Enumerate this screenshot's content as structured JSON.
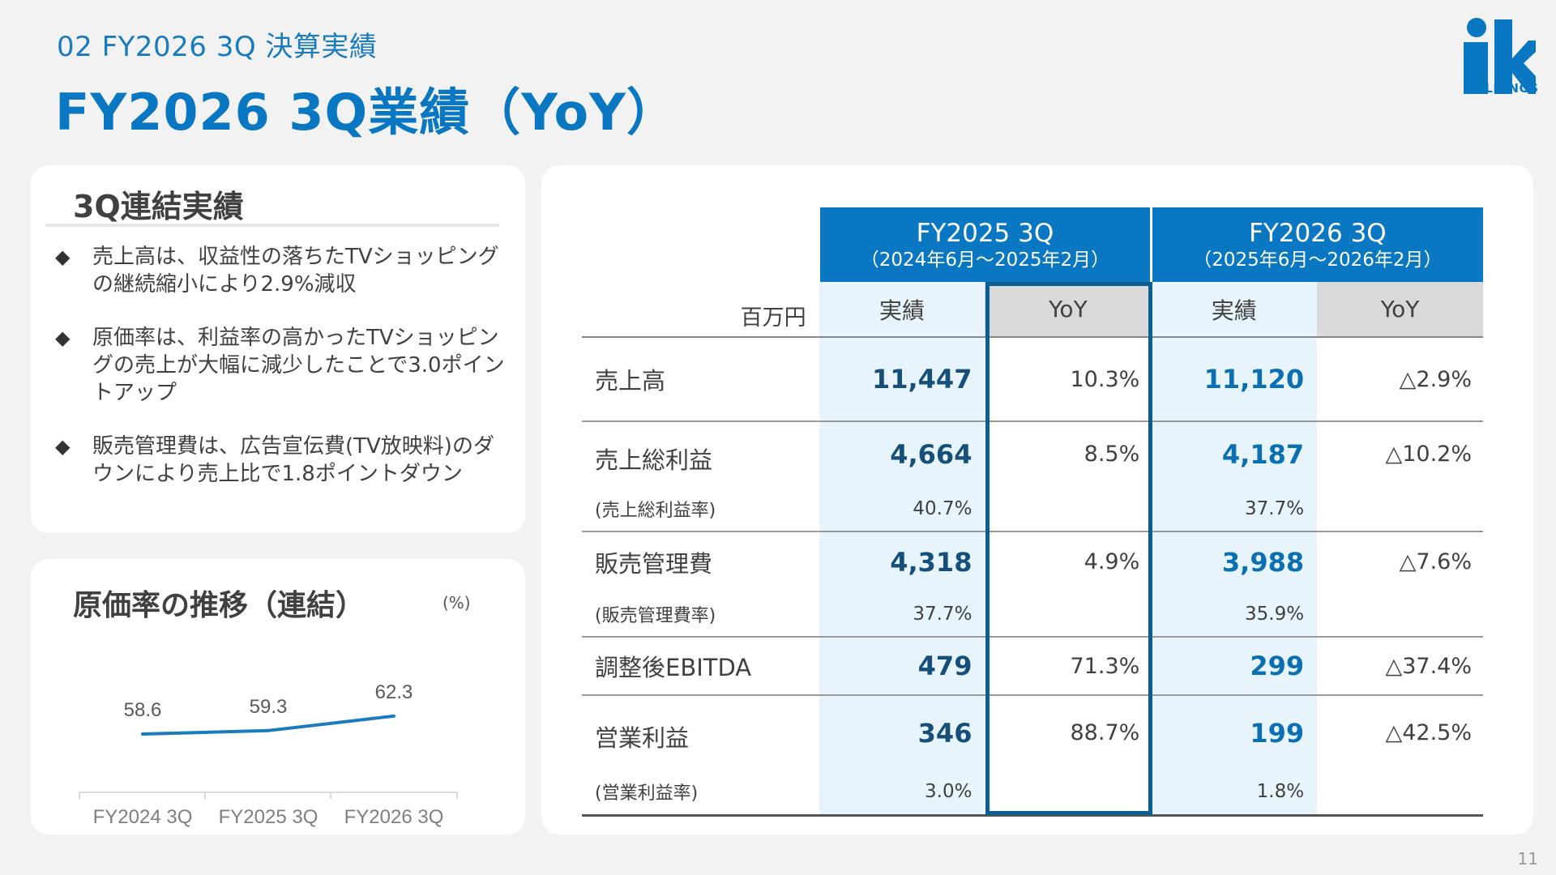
{
  "header": {
    "section_label": "02  FY2026 3Q 決算実績",
    "title": "FY2026 3Q業績（YoY）",
    "logo_text": "HOLDINGS"
  },
  "summary": {
    "heading": "3Q連結実績",
    "bullet_mark": "◆",
    "bullets": [
      "売上高は、収益性の落ちたTVショッピングの継続縮小により2.9%減収",
      "原価率は、利益率の高かったTVショッピングの売上が大幅に減少したことで3.0ポイントアップ",
      "販売管理費は、広告宣伝費(TV放映料)のダウンにより売上比で1.8ポイントダウン"
    ]
  },
  "cost_chart": {
    "title": "原価率の推移（連結）",
    "unit": "(%)"
  },
  "chart_data": {
    "type": "line",
    "title": "原価率の推移（連結）",
    "categories": [
      "FY2024 3Q",
      "FY2025 3Q",
      "FY2026 3Q"
    ],
    "series": [
      {
        "values": [
          58.6,
          59.3,
          62.3
        ]
      }
    ],
    "data_labels": [
      "58.6",
      "59.3",
      "62.3"
    ],
    "xlabel": "",
    "ylabel": "(%)",
    "grid": false,
    "legend": "none",
    "color": "#1a7bbf"
  },
  "table": {
    "unit_label": "百万円",
    "periods": [
      {
        "name": "FY2025  3Q",
        "range": "（2024年6月～2025年2月）"
      },
      {
        "name": "FY2026  3Q",
        "range": "（2025年6月～2026年2月）"
      }
    ],
    "col_actual": "実績",
    "col_yoy": "YoY",
    "rows": {
      "sales": {
        "label": "売上高",
        "v1": "11,447",
        "y1": "10.3%",
        "v2": "11,120",
        "y2": "△2.9%"
      },
      "gross": {
        "label": "売上総利益",
        "v1": "4,664",
        "y1": "8.5%",
        "v2": "4,187",
        "y2": "△10.2%"
      },
      "gross_rate": {
        "label": "(売上総利益率)",
        "v1": "40.7%",
        "v2": "37.7%"
      },
      "sga": {
        "label": "販売管理費",
        "v1": "4,318",
        "y1": "4.9%",
        "v2": "3,988",
        "y2": "△7.6%"
      },
      "sga_rate": {
        "label": "(販売管理費率)",
        "v1": "37.7%",
        "v2": "35.9%"
      },
      "ebitda": {
        "label": "調整後EBITDA",
        "v1": "479",
        "y1": "71.3%",
        "v2": "299",
        "y2": "△37.4%"
      },
      "op": {
        "label": "営業利益",
        "v1": "346",
        "y1": "88.7%",
        "v2": "199",
        "y2": "△42.5%"
      },
      "op_rate": {
        "label": "(営業利益率)",
        "v1": "3.0%",
        "v2": "1.8%"
      }
    }
  },
  "footer": {
    "page_number": "11"
  }
}
